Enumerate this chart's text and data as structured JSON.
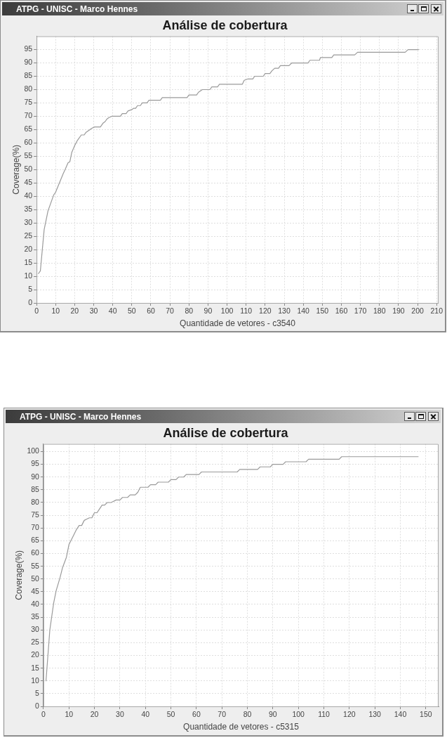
{
  "chart_data": [
    {
      "type": "line",
      "title": "Análise de cobertura",
      "xlabel": "Quantidade de vetores - c3540",
      "ylabel": "Coverage(%)",
      "annotations": [
        "ATPG - UNISC - Marco Hennes"
      ],
      "x": [
        1,
        2,
        4,
        6,
        9,
        10,
        12,
        14,
        15,
        16.5,
        17.5,
        18.5,
        20,
        21.5,
        23.5,
        25,
        26,
        28,
        29,
        30.5,
        33.5,
        35,
        36,
        37,
        38,
        39.5,
        44,
        45,
        47,
        48,
        50,
        51,
        52,
        53,
        54.5,
        55.5,
        58,
        59,
        65,
        66,
        79,
        80,
        84,
        85,
        87,
        91,
        92,
        95,
        96,
        108,
        109,
        111,
        113.5,
        114.5,
        119,
        120,
        122.5,
        123.5,
        125,
        127,
        128,
        132.5,
        134,
        142.5,
        143.5,
        148.5,
        149,
        155,
        156,
        167,
        168.5,
        193.5,
        195,
        200.5
      ],
      "values": [
        11,
        12,
        27.5,
        34.5,
        40.5,
        41.5,
        45,
        48.5,
        50,
        52.5,
        53,
        56.5,
        59,
        61,
        63,
        63,
        64,
        65,
        65.5,
        66,
        66,
        67.5,
        68,
        69,
        69.5,
        70,
        70,
        71,
        71,
        72,
        72.5,
        73,
        73,
        74,
        74,
        75,
        75,
        76,
        76,
        77,
        77,
        78,
        78,
        79,
        80,
        80,
        81,
        81,
        82,
        82,
        83.5,
        84,
        84,
        85,
        85,
        86,
        86,
        87,
        88,
        88,
        89,
        89,
        90,
        90,
        91,
        91,
        92,
        92,
        93,
        93,
        94,
        94,
        95,
        95
      ],
      "color": "#9a9a9a",
      "marker": "none",
      "xlim": [
        0,
        211
      ],
      "ylim": [
        0,
        100
      ],
      "xticks": [
        0,
        10,
        20,
        30,
        40,
        50,
        60,
        70,
        80,
        90,
        100,
        110,
        120,
        130,
        140,
        150,
        160,
        170,
        180,
        190,
        200,
        210
      ],
      "yticks": [
        0,
        5,
        10,
        15,
        20,
        25,
        30,
        35,
        40,
        45,
        50,
        55,
        60,
        65,
        70,
        75,
        80,
        85,
        90,
        95
      ],
      "grid": true
    },
    {
      "type": "line",
      "title": "Análise de cobertura",
      "xlabel": "Quantidade de vetores - c5315",
      "ylabel": "Coverage(%)",
      "annotations": [
        "ATPG - UNISC - Marco Hennes"
      ],
      "x": [
        1,
        2.5,
        4,
        5,
        6.5,
        7.5,
        9,
        10,
        11.5,
        13,
        14,
        15,
        16,
        17,
        18,
        19,
        20,
        21,
        22,
        23,
        24,
        25,
        26.5,
        27.5,
        28.5,
        30,
        31,
        33,
        34,
        36,
        37,
        38,
        41,
        42,
        44,
        45,
        49,
        50,
        52,
        53,
        55,
        56,
        61,
        62,
        76,
        77,
        84,
        85,
        89,
        90,
        94,
        95,
        103,
        104,
        116,
        117,
        147
      ],
      "values": [
        10,
        30,
        40.5,
        45.5,
        50.5,
        54.5,
        58.5,
        63.5,
        66.5,
        69.5,
        71,
        71,
        73,
        73.5,
        74,
        74,
        76,
        76,
        77.5,
        79,
        79,
        80,
        80,
        80.5,
        81,
        81,
        82,
        82,
        83,
        83,
        84,
        86,
        86,
        87,
        87,
        88,
        88,
        89,
        89,
        90,
        90,
        91,
        91,
        92,
        92,
        93,
        93,
        94,
        94,
        95,
        95,
        96,
        96,
        97,
        97,
        98,
        98
      ],
      "color": "#9a9a9a",
      "marker": "none",
      "xlim": [
        0,
        155
      ],
      "ylim": [
        0,
        103
      ],
      "xticks": [
        0,
        10,
        20,
        30,
        40,
        50,
        60,
        70,
        80,
        90,
        100,
        110,
        120,
        130,
        140,
        150
      ],
      "yticks": [
        0,
        5,
        10,
        15,
        20,
        25,
        30,
        35,
        40,
        45,
        50,
        55,
        60,
        65,
        70,
        75,
        80,
        85,
        90,
        95,
        100
      ],
      "grid": true
    }
  ]
}
